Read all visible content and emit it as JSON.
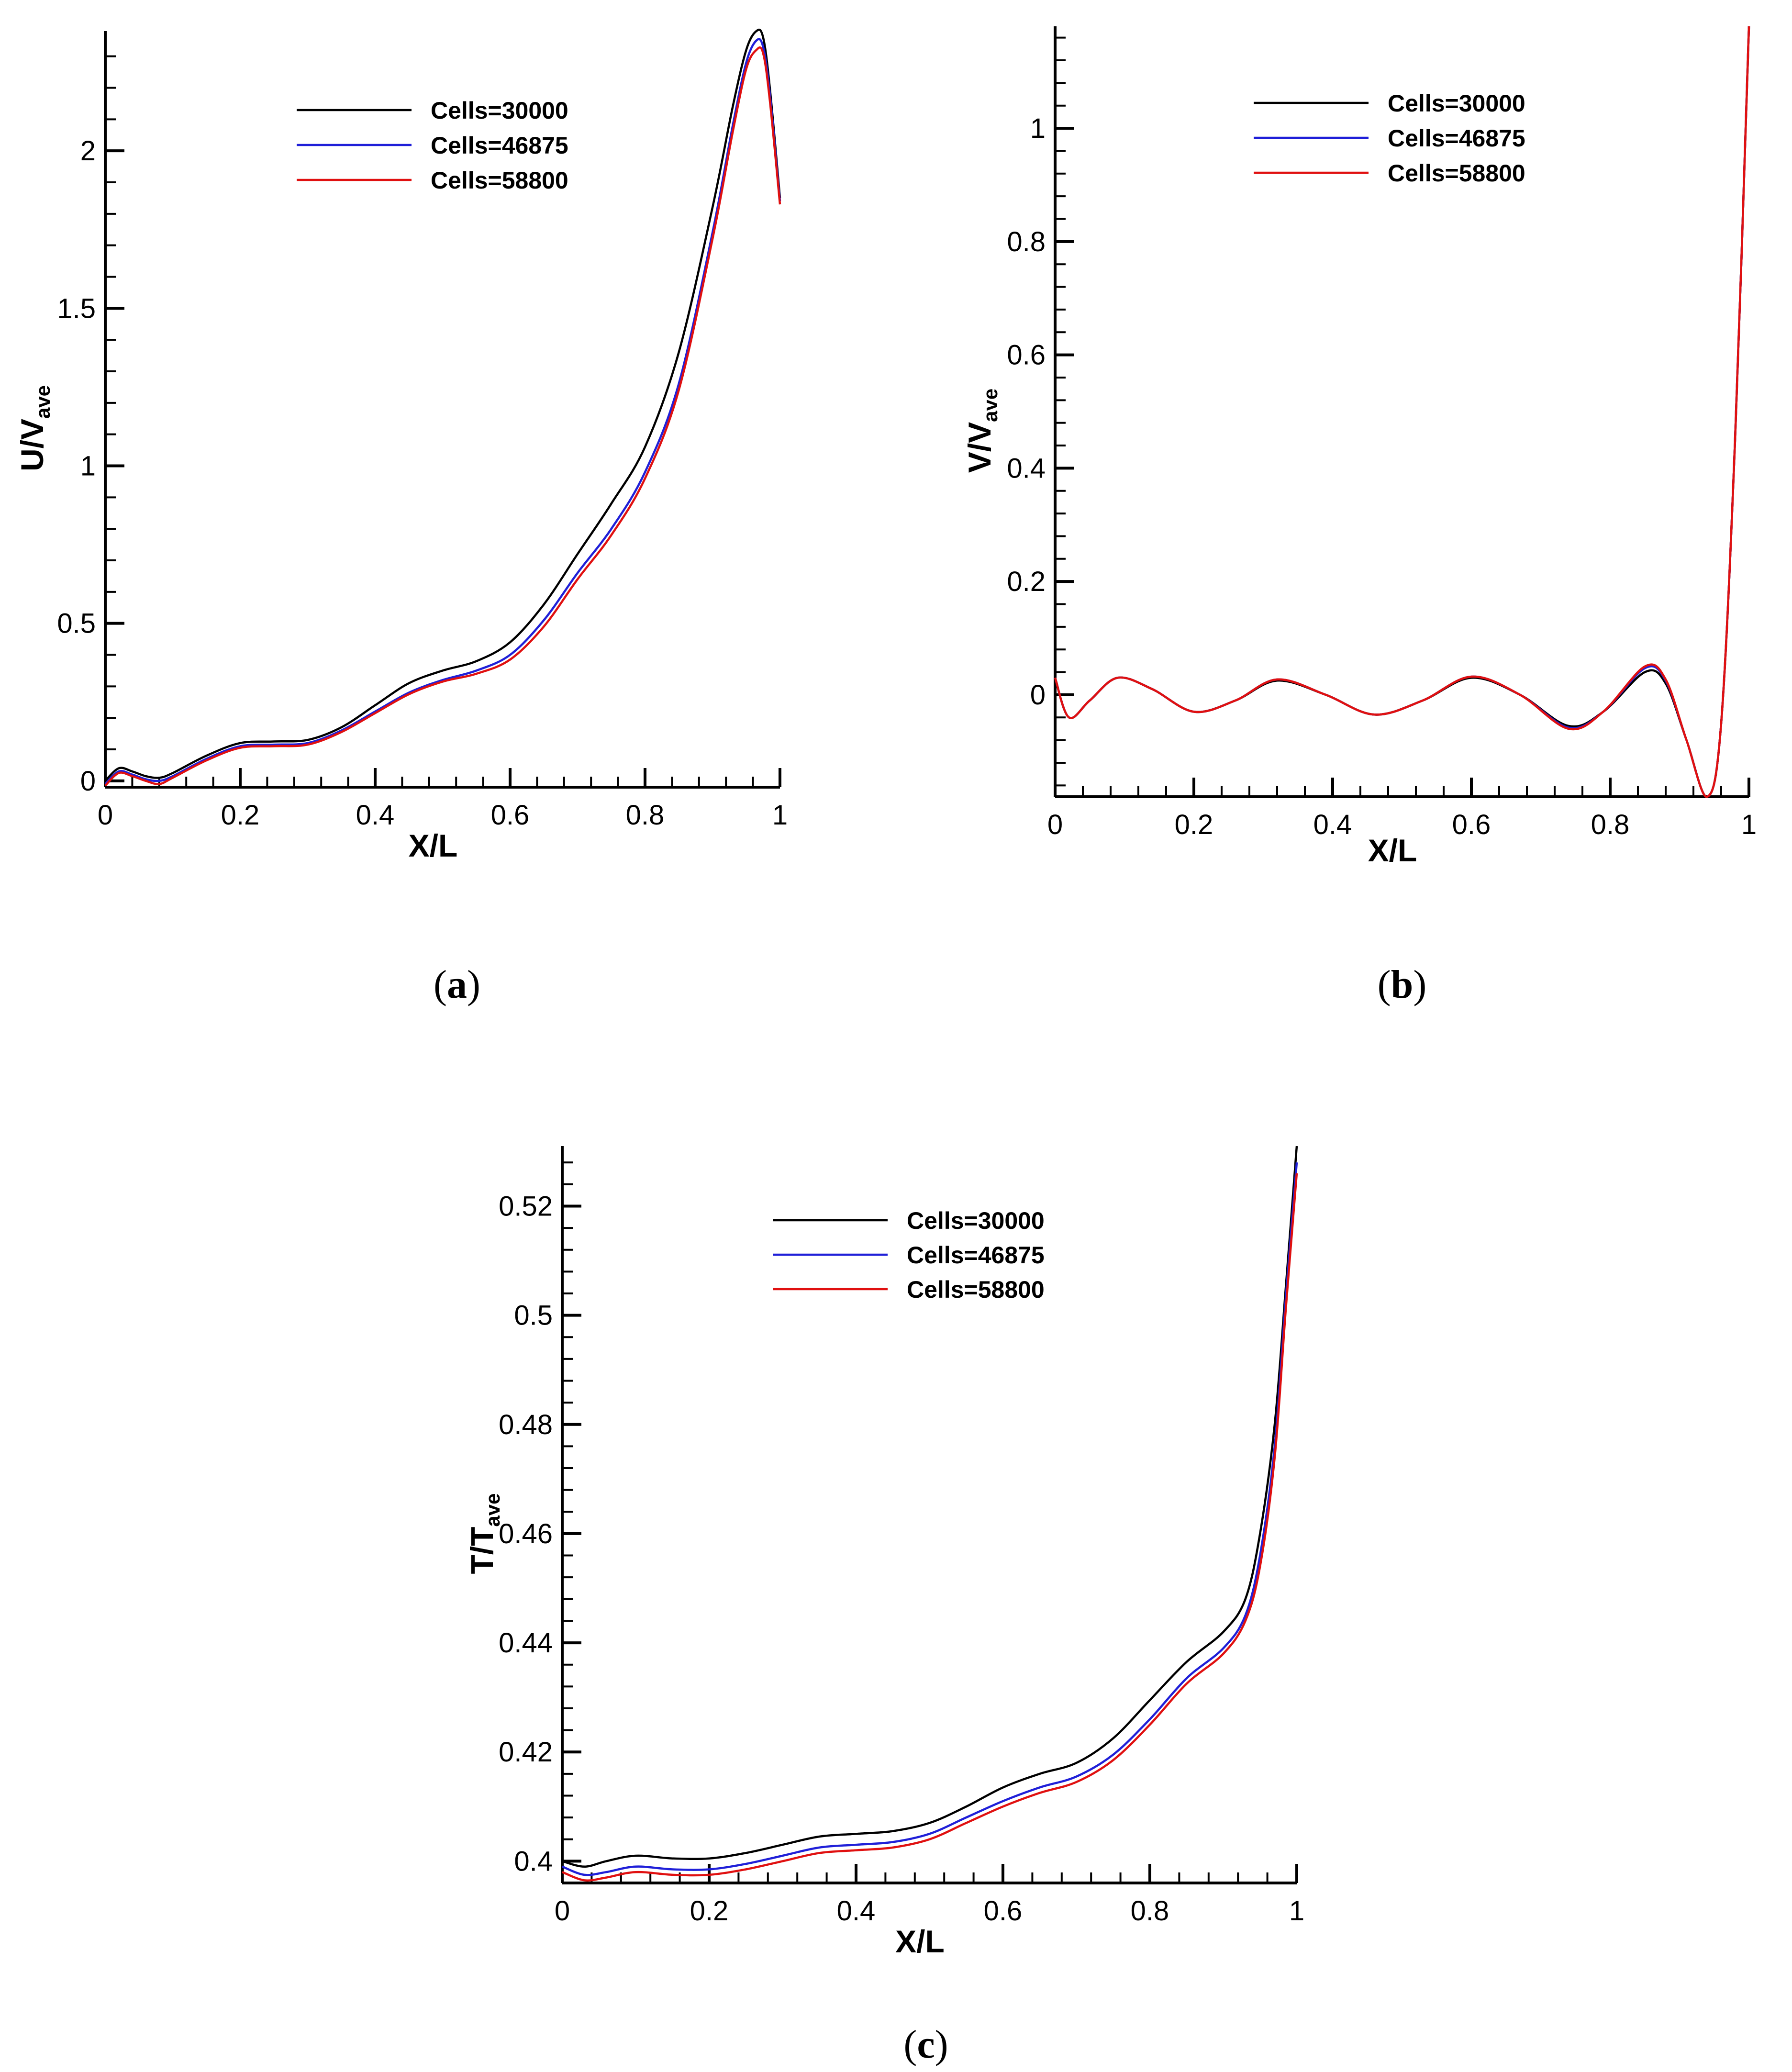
{
  "figure": {
    "captions": [
      "(a)",
      "(b)",
      "(c)"
    ],
    "caption_parts": [
      {
        "open": "(",
        "letter": "a",
        "close": ")"
      },
      {
        "open": "(",
        "letter": "b",
        "close": ")"
      },
      {
        "open": "(",
        "letter": "c",
        "close": ")"
      }
    ]
  },
  "colors": {
    "Cells=30000": "#000000",
    "Cells=46875": "#1f1fd8",
    "Cells=58800": "#e01010"
  },
  "chart_data": [
    {
      "type": "line",
      "panel": "a",
      "xlabel": "X/L",
      "ylabel": {
        "base": "U/V",
        "sub": "ave"
      },
      "xlim": [
        0,
        1
      ],
      "ylim": [
        -0.02,
        2.38
      ],
      "xticks": [
        0,
        0.2,
        0.4,
        0.6,
        0.8,
        1
      ],
      "xtick_labels": [
        "0",
        "0.2",
        "0.4",
        "0.6",
        "0.8",
        "1"
      ],
      "yticks": [
        0,
        0.5,
        1,
        1.5,
        2
      ],
      "ytick_labels": [
        "0",
        "0.5",
        "1",
        "1.5",
        "2"
      ],
      "legend": [
        "Cells=30000",
        "Cells=46875",
        "Cells=58800"
      ],
      "legend_position": "top-center",
      "series": [
        {
          "name": "Cells=30000",
          "x": [
            0,
            0.02,
            0.04,
            0.06,
            0.08,
            0.1,
            0.15,
            0.2,
            0.25,
            0.3,
            0.35,
            0.4,
            0.45,
            0.5,
            0.55,
            0.6,
            0.65,
            0.7,
            0.75,
            0.8,
            0.85,
            0.9,
            0.93,
            0.95,
            0.965,
            0.975,
            0.985,
            1.0
          ],
          "y": [
            0.0,
            0.04,
            0.03,
            0.015,
            0.01,
            0.025,
            0.08,
            0.12,
            0.125,
            0.13,
            0.17,
            0.24,
            0.31,
            0.35,
            0.38,
            0.44,
            0.56,
            0.72,
            0.88,
            1.06,
            1.36,
            1.82,
            2.14,
            2.32,
            2.38,
            2.36,
            2.2,
            1.85
          ]
        },
        {
          "name": "Cells=46875",
          "x": [
            0,
            0.02,
            0.04,
            0.06,
            0.08,
            0.1,
            0.15,
            0.2,
            0.25,
            0.3,
            0.35,
            0.4,
            0.45,
            0.5,
            0.55,
            0.6,
            0.65,
            0.7,
            0.75,
            0.8,
            0.85,
            0.9,
            0.93,
            0.95,
            0.965,
            0.975,
            0.985,
            1.0
          ],
          "y": [
            -0.01,
            0.03,
            0.02,
            0.005,
            0.0,
            0.015,
            0.07,
            0.11,
            0.115,
            0.12,
            0.16,
            0.22,
            0.28,
            0.32,
            0.35,
            0.4,
            0.51,
            0.66,
            0.8,
            0.98,
            1.26,
            1.74,
            2.08,
            2.28,
            2.35,
            2.33,
            2.18,
            1.84
          ]
        },
        {
          "name": "Cells=58800",
          "x": [
            0,
            0.02,
            0.04,
            0.06,
            0.08,
            0.1,
            0.15,
            0.2,
            0.25,
            0.3,
            0.35,
            0.4,
            0.45,
            0.5,
            0.55,
            0.6,
            0.65,
            0.7,
            0.75,
            0.8,
            0.85,
            0.9,
            0.93,
            0.95,
            0.965,
            0.975,
            0.985,
            1.0
          ],
          "y": [
            -0.015,
            0.025,
            0.015,
            0.0,
            -0.01,
            0.01,
            0.065,
            0.105,
            0.11,
            0.115,
            0.155,
            0.215,
            0.275,
            0.315,
            0.34,
            0.385,
            0.49,
            0.64,
            0.78,
            0.96,
            1.24,
            1.72,
            2.06,
            2.26,
            2.32,
            2.31,
            2.16,
            1.83
          ]
        }
      ]
    },
    {
      "type": "line",
      "panel": "b",
      "xlabel": "X/L",
      "ylabel": {
        "base": "V/V",
        "sub": "ave"
      },
      "xlim": [
        0,
        1
      ],
      "ylim": [
        -0.18,
        1.18
      ],
      "xticks": [
        0,
        0.2,
        0.4,
        0.6,
        0.8,
        1
      ],
      "xtick_labels": [
        "0",
        "0.2",
        "0.4",
        "0.6",
        "0.8",
        "1"
      ],
      "yticks": [
        0,
        0.2,
        0.4,
        0.6,
        0.8,
        1
      ],
      "ytick_labels": [
        "0",
        "0.2",
        "0.4",
        "0.6",
        "0.8",
        "1"
      ],
      "legend": [
        "Cells=30000",
        "Cells=46875",
        "Cells=58800"
      ],
      "legend_position": "top-center",
      "series": [
        {
          "name": "Cells=30000",
          "x": [
            0,
            0.02,
            0.05,
            0.09,
            0.14,
            0.2,
            0.26,
            0.32,
            0.39,
            0.46,
            0.53,
            0.6,
            0.67,
            0.74,
            0.79,
            0.85,
            0.88,
            0.91,
            0.94,
            0.96,
            0.98,
            1.0
          ],
          "y": [
            0.03,
            -0.04,
            -0.01,
            0.03,
            0.01,
            -0.03,
            -0.01,
            0.025,
            0.0,
            -0.035,
            -0.01,
            0.03,
            0.0,
            -0.055,
            -0.03,
            0.04,
            0.02,
            -0.08,
            -0.18,
            -0.05,
            0.45,
            1.18
          ]
        },
        {
          "name": "Cells=46875",
          "x": [
            0,
            0.02,
            0.05,
            0.09,
            0.14,
            0.2,
            0.26,
            0.32,
            0.39,
            0.46,
            0.53,
            0.6,
            0.67,
            0.74,
            0.79,
            0.85,
            0.88,
            0.91,
            0.94,
            0.96,
            0.98,
            1.0
          ],
          "y": [
            0.03,
            -0.04,
            -0.01,
            0.03,
            0.01,
            -0.03,
            -0.01,
            0.027,
            0.0,
            -0.035,
            -0.01,
            0.032,
            0.0,
            -0.058,
            -0.03,
            0.047,
            0.025,
            -0.08,
            -0.18,
            -0.05,
            0.45,
            1.18
          ]
        },
        {
          "name": "Cells=58800",
          "x": [
            0,
            0.02,
            0.05,
            0.09,
            0.14,
            0.2,
            0.26,
            0.32,
            0.39,
            0.46,
            0.53,
            0.6,
            0.67,
            0.74,
            0.79,
            0.85,
            0.88,
            0.91,
            0.94,
            0.96,
            0.98,
            1.0
          ],
          "y": [
            0.03,
            -0.04,
            -0.01,
            0.03,
            0.01,
            -0.03,
            -0.01,
            0.027,
            0.0,
            -0.035,
            -0.01,
            0.032,
            0.0,
            -0.06,
            -0.03,
            0.05,
            0.027,
            -0.08,
            -0.18,
            -0.05,
            0.45,
            1.18
          ]
        }
      ]
    },
    {
      "type": "line",
      "panel": "c",
      "xlabel": "X/L",
      "ylabel": {
        "base": "T/T",
        "sub": "ave"
      },
      "xlim": [
        0,
        1
      ],
      "ylim": [
        0.396,
        0.531
      ],
      "xticks": [
        0,
        0.2,
        0.4,
        0.6,
        0.8,
        1
      ],
      "xtick_labels": [
        "0",
        "0.2",
        "0.4",
        "0.6",
        "0.8",
        "1"
      ],
      "yticks": [
        0.4,
        0.42,
        0.44,
        0.46,
        0.48,
        0.5,
        0.52
      ],
      "ytick_labels": [
        "0.4",
        "0.42",
        "0.44",
        "0.46",
        "0.48",
        "0.5",
        "0.52"
      ],
      "legend": [
        "Cells=30000",
        "Cells=46875",
        "Cells=58800"
      ],
      "legend_position": "top-center",
      "series": [
        {
          "name": "Cells=30000",
          "x": [
            0,
            0.03,
            0.06,
            0.1,
            0.15,
            0.2,
            0.25,
            0.3,
            0.35,
            0.4,
            0.45,
            0.5,
            0.55,
            0.6,
            0.65,
            0.7,
            0.75,
            0.8,
            0.85,
            0.9,
            0.93,
            0.95,
            0.97,
            0.985,
            1.0
          ],
          "y": [
            0.4,
            0.399,
            0.4,
            0.401,
            0.4005,
            0.4005,
            0.4015,
            0.403,
            0.4045,
            0.405,
            0.4055,
            0.407,
            0.41,
            0.4135,
            0.416,
            0.418,
            0.4225,
            0.4295,
            0.4365,
            0.442,
            0.448,
            0.46,
            0.48,
            0.505,
            0.531
          ]
        },
        {
          "name": "Cells=46875",
          "x": [
            0,
            0.03,
            0.06,
            0.1,
            0.15,
            0.2,
            0.25,
            0.3,
            0.35,
            0.4,
            0.45,
            0.5,
            0.55,
            0.6,
            0.65,
            0.7,
            0.75,
            0.8,
            0.85,
            0.9,
            0.93,
            0.95,
            0.97,
            0.985,
            1.0
          ],
          "y": [
            0.399,
            0.3975,
            0.398,
            0.399,
            0.3985,
            0.3985,
            0.3995,
            0.401,
            0.4025,
            0.403,
            0.4035,
            0.405,
            0.408,
            0.411,
            0.4135,
            0.4155,
            0.4195,
            0.426,
            0.4335,
            0.439,
            0.445,
            0.456,
            0.476,
            0.503,
            0.528
          ]
        },
        {
          "name": "Cells=58800",
          "x": [
            0,
            0.03,
            0.06,
            0.1,
            0.15,
            0.2,
            0.25,
            0.3,
            0.35,
            0.4,
            0.45,
            0.5,
            0.55,
            0.6,
            0.65,
            0.7,
            0.75,
            0.8,
            0.85,
            0.9,
            0.93,
            0.95,
            0.97,
            0.985,
            1.0
          ],
          "y": [
            0.398,
            0.3965,
            0.397,
            0.398,
            0.3975,
            0.3975,
            0.3985,
            0.4,
            0.4015,
            0.402,
            0.4025,
            0.404,
            0.407,
            0.41,
            0.4125,
            0.4145,
            0.4185,
            0.425,
            0.4325,
            0.438,
            0.444,
            0.454,
            0.474,
            0.501,
            0.526
          ]
        }
      ]
    }
  ]
}
